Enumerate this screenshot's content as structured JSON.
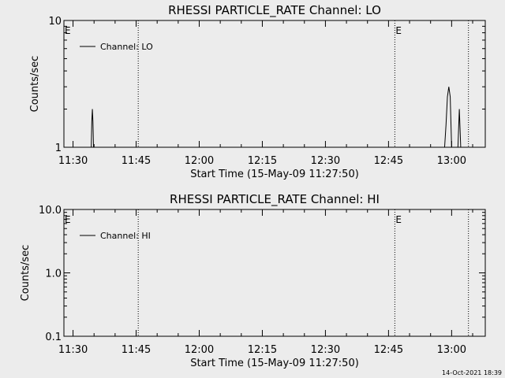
{
  "chart_data": [
    {
      "type": "line",
      "title": "RHESSI PARTICLE_RATE Channel: LO",
      "xlabel": "Start Time (15-May-09 11:27:50)",
      "ylabel": "Counts/sec",
      "xlim": [
        "11:27:50",
        "13:08:00"
      ],
      "ylim": [
        1,
        10
      ],
      "yscale": "log",
      "x_ticks": [
        "11:30",
        "11:45",
        "12:00",
        "12:15",
        "12:30",
        "12:45",
        "13:00"
      ],
      "y_ticks": [
        "1",
        "10"
      ],
      "legend": {
        "entries": [
          "Channel: LO"
        ],
        "position": "top-left"
      },
      "event_markers": [
        {
          "x": "11:27:50",
          "label": "E",
          "dotted": false
        },
        {
          "x": "11:45:30",
          "label": "",
          "dotted": true
        },
        {
          "x": "12:46:30",
          "label": "E",
          "dotted": true
        },
        {
          "x": "13:04:00",
          "label": "",
          "dotted": true
        }
      ],
      "series": [
        {
          "name": "Channel: LO",
          "x": [
            "11:34:20",
            "11:34:28",
            "11:34:36",
            "11:34:44",
            "11:34:52",
            "12:58:20",
            "12:58:40",
            "12:59:00",
            "12:59:20",
            "12:59:40",
            "13:00:00",
            "13:01:30",
            "13:01:50",
            "13:02:10"
          ],
          "values": [
            1,
            1.6,
            2,
            1.6,
            1,
            1,
            1.5,
            2.5,
            3,
            2.5,
            1,
            1,
            2,
            1
          ]
        }
      ]
    },
    {
      "type": "line",
      "title": "RHESSI PARTICLE_RATE Channel: HI",
      "xlabel": "Start Time (15-May-09 11:27:50)",
      "ylabel": "Counts/sec",
      "xlim": [
        "11:27:50",
        "13:08:00"
      ],
      "ylim": [
        0.1,
        10
      ],
      "yscale": "log",
      "x_ticks": [
        "11:30",
        "11:45",
        "12:00",
        "12:15",
        "12:30",
        "12:45",
        "13:00"
      ],
      "y_ticks": [
        "0.1",
        "1.0",
        "10.0"
      ],
      "legend": {
        "entries": [
          "Channel: HI"
        ],
        "position": "top-left"
      },
      "event_markers": [
        {
          "x": "11:27:50",
          "label": "E",
          "dotted": false
        },
        {
          "x": "11:45:30",
          "label": "",
          "dotted": true
        },
        {
          "x": "12:46:30",
          "label": "E",
          "dotted": true
        },
        {
          "x": "13:04:00",
          "label": "",
          "dotted": true
        }
      ],
      "series": [
        {
          "name": "Channel: HI",
          "x": [],
          "values": []
        }
      ]
    }
  ],
  "footer": {
    "timestamp": "14-Oct-2021 18:39"
  }
}
